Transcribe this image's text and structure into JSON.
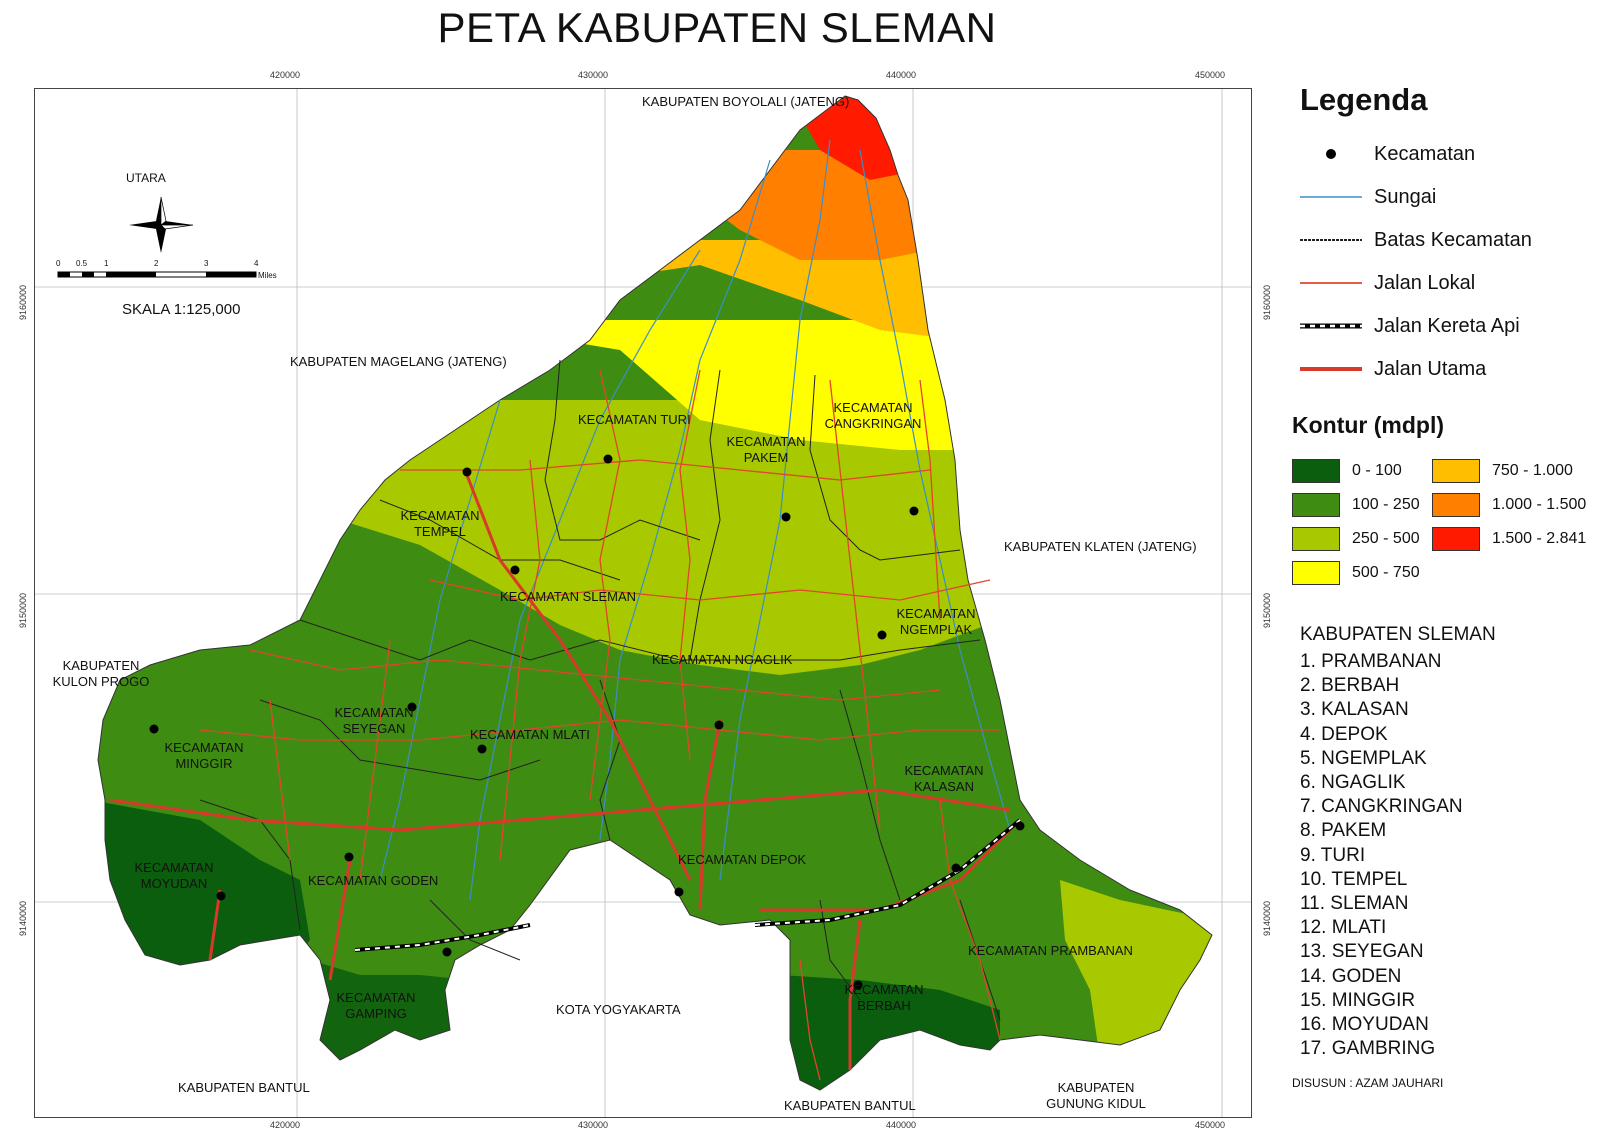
{
  "title": "PETA KABUPATEN SLEMAN",
  "grid": {
    "x_labels": [
      "420000",
      "430000",
      "440000",
      "450000"
    ],
    "y_labels": [
      "9160000",
      "9150000",
      "9140000"
    ]
  },
  "north_arrow": {
    "label": "UTARA",
    "icon": "compass-rose-icon"
  },
  "scale_bar": {
    "ticks": [
      "0",
      "0.5",
      "1",
      "2",
      "3",
      "4"
    ],
    "unit": "Miles",
    "scale_text": "SKALA 1:125,000"
  },
  "surrounding": {
    "boyolali": "KABUPATEN BOYOLALI (JATENG)",
    "magelang": "KABUPATEN MAGELANG (JATENG)",
    "klaten": "KABUPATEN KLATEN (JATENG)",
    "kulon_progo_1": "KABUPATEN",
    "kulon_progo_2": "KULON PROGO",
    "bantul_w": "KABUPATEN BANTUL",
    "yogyakarta": "KOTA YOGYAKARTA",
    "bantul_s": "KABUPATEN BANTUL",
    "gunung_kidul_1": "KABUPATEN",
    "gunung_kidul_2": "GUNUNG KIDUL"
  },
  "kecamatan": {
    "turi": "KECAMATAN TURI",
    "pakem_1": "KECAMATAN",
    "pakem_2": "PAKEM",
    "cangkringan_1": "KECAMATAN",
    "cangkringan_2": "CANGKRINGAN",
    "tempel_1": "KECAMATAN",
    "tempel_2": "TEMPEL",
    "sleman": "KECAMATAN SLEMAN",
    "ngemplak_1": "KECAMATAN",
    "ngemplak_2": "NGEMPLAK",
    "ngaglik": "KECAMATAN NGAGLIK",
    "seyegan_1": "KECAMATAN",
    "seyegan_2": "SEYEGAN",
    "mlati": "KECAMATAN MLATI",
    "minggir_1": "KECAMATAN",
    "minggir_2": "MINGGIR",
    "kalasan_1": "KECAMATAN",
    "kalasan_2": "KALASAN",
    "moyudan_1": "KECAMATAN",
    "moyudan_2": "MOYUDAN",
    "goden": "KECAMATAN GODEN",
    "depok": "KECAMATAN DEPOK",
    "prambanan": "KECAMATAN PRAMBANAN",
    "gamping_1": "KECAMATAN",
    "gamping_2": "GAMPING",
    "berbah_1": "KECAMATAN",
    "berbah_2": "BERBAH"
  },
  "legend": {
    "title": "Legenda",
    "items": [
      {
        "label": "Kecamatan",
        "symbol": "point-icon"
      },
      {
        "label": "Sungai",
        "symbol": "river-line-icon",
        "color": "#3a8fc8"
      },
      {
        "label": "Batas Kecamatan",
        "symbol": "boundary-line-icon",
        "color": "#222222"
      },
      {
        "label": "Jalan Lokal",
        "symbol": "local-road-line-icon",
        "color": "#e2452b"
      },
      {
        "label": "Jalan Kereta Api",
        "symbol": "railway-line-icon",
        "color": "#000000"
      },
      {
        "label": "Jalan Utama",
        "symbol": "main-road-line-icon",
        "color": "#d9392a"
      }
    ]
  },
  "kontur": {
    "title": "Kontur (mdpl)",
    "classes": [
      {
        "label": "0 - 100",
        "color": "#0b5e0e"
      },
      {
        "label": "100 - 250",
        "color": "#3f8c12"
      },
      {
        "label": "250 - 500",
        "color": "#a8c800"
      },
      {
        "label": "500 - 750",
        "color": "#ffff00"
      },
      {
        "label": "750 - 1.000",
        "color": "#ffbe00"
      },
      {
        "label": "1.000 - 1.500",
        "color": "#ff7f00"
      },
      {
        "label": "1.500 - 2.841",
        "color": "#ff1a00"
      }
    ]
  },
  "kabupaten_list": {
    "title": "KABUPATEN SLEMAN",
    "items": [
      "1. PRAMBANAN",
      "2. BERBAH",
      "3. KALASAN",
      "4. DEPOK",
      "5. NGEMPLAK",
      "6. NGAGLIK",
      "7. CANGKRINGAN",
      "8. PAKEM",
      "9. TURI",
      "10. TEMPEL",
      "11. SLEMAN",
      "12. MLATI",
      "13. SEYEGAN",
      "14. GODEN",
      "15. MINGGIR",
      "16. MOYUDAN",
      "17. GAMBRING"
    ]
  },
  "credit": "DISUSUN : AZAM JAUHARI"
}
